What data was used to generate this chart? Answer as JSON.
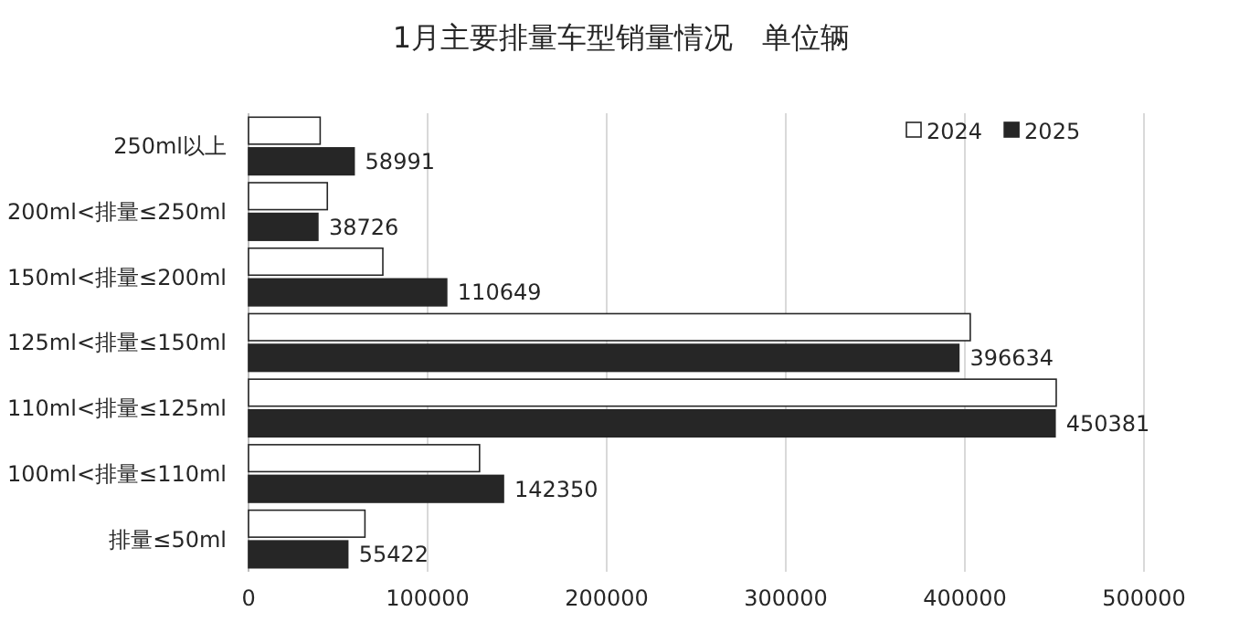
{
  "chart_data": {
    "type": "bar",
    "orientation": "horizontal",
    "title": "1月主要排量车型销量情况　单位辆",
    "categories": [
      "250ml以上",
      "200ml<排量≤250ml",
      "150ml<排量≤200ml",
      "125ml<排量≤150ml",
      "110ml<排量≤125ml",
      "100ml<排量≤110ml",
      "排量≤50ml"
    ],
    "series": [
      {
        "name": "2024",
        "color": "#ffffff",
        "values": [
          40000,
          44000,
          75000,
          403000,
          451000,
          129000,
          65000
        ]
      },
      {
        "name": "2025",
        "color": "#262626",
        "values": [
          58991,
          38726,
          110649,
          396634,
          450381,
          142350,
          55422
        ],
        "value_labels": [
          "58991",
          "38726",
          "110649",
          "396634",
          "450381",
          "142350",
          "55422"
        ]
      }
    ],
    "xlim": [
      0,
      500000
    ],
    "xticks": [
      0,
      100000,
      200000,
      300000,
      400000,
      500000
    ],
    "grid": "x",
    "legend": "top right"
  }
}
